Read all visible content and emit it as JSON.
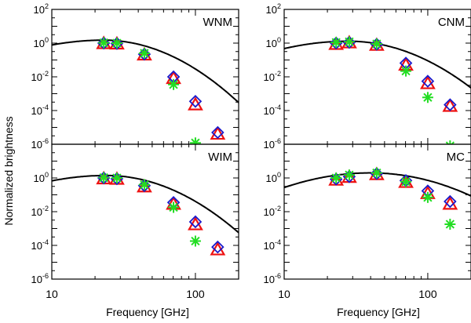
{
  "figure": {
    "ylabel": "Normalized brightness",
    "xlabel": "Frequency [GHz]",
    "colors": {
      "model": "#000000",
      "triangle": "#ee1111",
      "diamond": "#1a1acc",
      "star": "#22dd22"
    }
  },
  "chart_data": [
    {
      "type": "scatter",
      "title": "WNM",
      "xlabel": "Frequency [GHz]",
      "ylabel": "Normalized brightness",
      "xscale": "log",
      "yscale": "log",
      "xlim": [
        10,
        200
      ],
      "ylim": [
        1e-06,
        100
      ],
      "xticks": [
        10,
        100
      ],
      "xtick_labels": [
        "10",
        "100"
      ],
      "yticks": [
        1e-06,
        0.0001,
        0.01,
        1,
        100
      ],
      "ytick_labels": [
        [
          "10",
          "-6"
        ],
        [
          "10",
          "-4"
        ],
        [
          "10",
          "-2"
        ],
        [
          "10",
          "0"
        ],
        [
          "10",
          "2"
        ]
      ],
      "model_curve": {
        "name": "model",
        "peak_frequency_ghz": 23,
        "peak_value": 1.5,
        "slope": 4.2,
        "curvature": 2.2
      },
      "series": [
        {
          "name": "triangle",
          "marker": "triangle",
          "x": [
            23,
            28.4,
            44.1,
            70.4,
            100,
            143
          ],
          "y": [
            0.95,
            0.9,
            0.2,
            0.008,
            0.00022,
            4e-06
          ]
        },
        {
          "name": "diamond",
          "marker": "diamond",
          "x": [
            23,
            28.4,
            44.1,
            70.4,
            100,
            143
          ],
          "y": [
            1.0,
            0.95,
            0.22,
            0.01,
            0.00035,
            5e-06
          ]
        },
        {
          "name": "star",
          "marker": "star",
          "x": [
            23,
            28.4,
            44.1,
            70.4,
            100
          ],
          "y": [
            1.05,
            1.0,
            0.25,
            0.0035,
            1.2e-06
          ]
        }
      ]
    },
    {
      "type": "scatter",
      "title": "CNM",
      "xlabel": "Frequency [GHz]",
      "ylabel": "Normalized brightness",
      "xscale": "log",
      "yscale": "log",
      "xlim": [
        10,
        200
      ],
      "ylim": [
        1e-06,
        100
      ],
      "xticks": [
        10,
        100
      ],
      "xtick_labels": [
        "10",
        "100"
      ],
      "yticks": [
        1e-06,
        0.0001,
        0.01,
        1,
        100
      ],
      "ytick_labels": [
        [
          "10",
          "-6"
        ],
        [
          "10",
          "-4"
        ],
        [
          "10",
          "-2"
        ],
        [
          "10",
          "0"
        ],
        [
          "10",
          "2"
        ]
      ],
      "model_curve": {
        "name": "model",
        "peak_frequency_ghz": 28,
        "peak_value": 1.3,
        "slope": 3.8,
        "curvature": 2.2
      },
      "series": [
        {
          "name": "triangle",
          "marker": "triangle",
          "x": [
            23,
            28.4,
            44.1,
            70.4,
            100,
            143
          ],
          "y": [
            0.85,
            1.05,
            0.75,
            0.05,
            0.004,
            0.00018
          ]
        },
        {
          "name": "diamond",
          "marker": "diamond",
          "x": [
            23,
            28.4,
            44.1,
            70.4,
            100,
            143
          ],
          "y": [
            1.0,
            1.1,
            0.85,
            0.065,
            0.0055,
            0.00022
          ]
        },
        {
          "name": "star",
          "marker": "star",
          "x": [
            23,
            28.4,
            44.1,
            70.4,
            100,
            143
          ],
          "y": [
            1.1,
            1.2,
            0.9,
            0.022,
            0.0006,
            8e-07
          ]
        }
      ]
    },
    {
      "type": "scatter",
      "title": "WIM",
      "xlabel": "Frequency [GHz]",
      "ylabel": "Normalized brightness",
      "xscale": "log",
      "yscale": "log",
      "xlim": [
        10,
        200
      ],
      "ylim": [
        1e-06,
        100
      ],
      "xticks": [
        10,
        100
      ],
      "xtick_labels": [
        "10",
        "100"
      ],
      "yticks": [
        1e-06,
        0.0001,
        0.01,
        1,
        100
      ],
      "ytick_labels": [
        [
          "10",
          "-6"
        ],
        [
          "10",
          "-4"
        ],
        [
          "10",
          "-2"
        ],
        [
          "10",
          "0"
        ],
        [
          "10",
          "2"
        ]
      ],
      "model_curve": {
        "name": "model",
        "peak_frequency_ghz": 24,
        "peak_value": 1.4,
        "slope": 4.0,
        "curvature": 2.2
      },
      "series": [
        {
          "name": "triangle",
          "marker": "triangle",
          "x": [
            23,
            28.4,
            44.1,
            70.4,
            100,
            143
          ],
          "y": [
            0.9,
            0.85,
            0.3,
            0.028,
            0.0017,
            5.5e-05
          ]
        },
        {
          "name": "diamond",
          "marker": "diamond",
          "x": [
            23,
            28.4,
            44.1,
            70.4,
            100,
            143
          ],
          "y": [
            1.0,
            0.9,
            0.35,
            0.035,
            0.0025,
            8e-05
          ]
        },
        {
          "name": "star",
          "marker": "star",
          "x": [
            23,
            28.4,
            44.1,
            70.4,
            100
          ],
          "y": [
            1.05,
            1.0,
            0.4,
            0.018,
            0.00018
          ]
        }
      ]
    },
    {
      "type": "scatter",
      "title": "MC",
      "xlabel": "Frequency [GHz]",
      "ylabel": "Normalized brightness",
      "xscale": "log",
      "yscale": "log",
      "xlim": [
        10,
        200
      ],
      "ylim": [
        1e-06,
        100
      ],
      "xticks": [
        10,
        100
      ],
      "xtick_labels": [
        "10",
        "100"
      ],
      "yticks": [
        1e-06,
        0.0001,
        0.01,
        1,
        100
      ],
      "ytick_labels": [
        [
          "10",
          "-6"
        ],
        [
          "10",
          "-4"
        ],
        [
          "10",
          "-2"
        ],
        [
          "10",
          "0"
        ],
        [
          "10",
          "2"
        ]
      ],
      "model_curve": {
        "name": "model",
        "peak_frequency_ghz": 40,
        "peak_value": 2.0,
        "slope": 2.8,
        "curvature": 2.4
      },
      "series": [
        {
          "name": "triangle",
          "marker": "triangle",
          "x": [
            23,
            28.4,
            44.1,
            70.4,
            100,
            143
          ],
          "y": [
            0.75,
            1.1,
            1.6,
            0.55,
            0.12,
            0.028
          ]
        },
        {
          "name": "diamond",
          "marker": "diamond",
          "x": [
            23,
            28.4,
            44.1,
            70.4,
            100,
            143
          ],
          "y": [
            0.85,
            1.2,
            1.8,
            0.7,
            0.17,
            0.04
          ]
        },
        {
          "name": "star",
          "marker": "star",
          "x": [
            23,
            28.4,
            44.1,
            70.4,
            100,
            143
          ],
          "y": [
            1.0,
            1.5,
            2.0,
            0.6,
            0.07,
            0.0018
          ]
        }
      ]
    }
  ]
}
